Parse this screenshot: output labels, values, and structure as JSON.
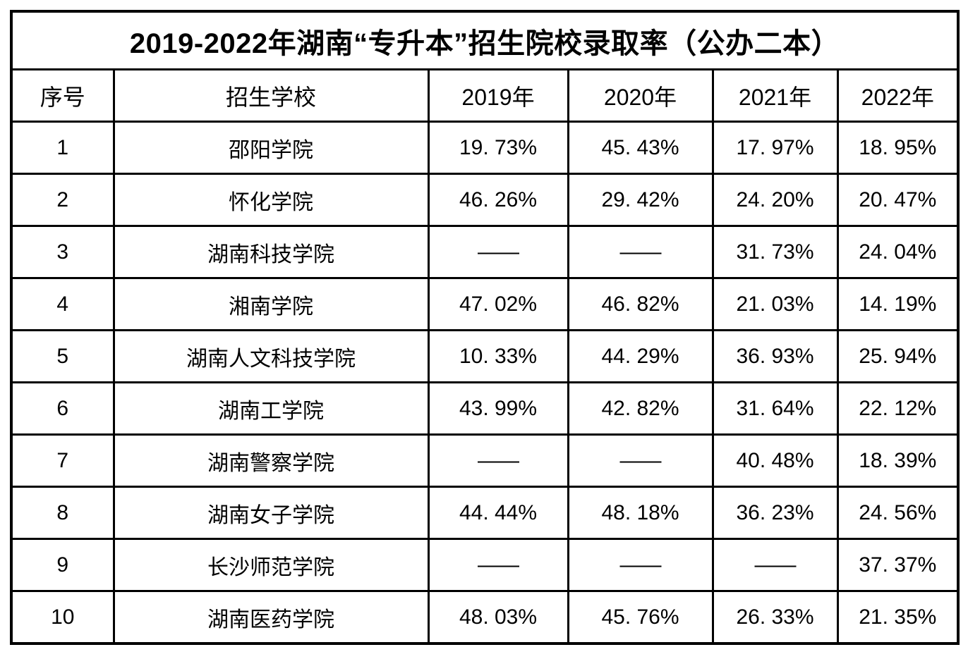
{
  "title": "2019-2022年湖南“专升本”招生院校录取率（公办二本）",
  "table": {
    "columns": [
      "序号",
      "招生学校",
      "2019年",
      "2020年",
      "2021年",
      "2022年"
    ],
    "empty_marker": "——",
    "rows": [
      [
        "1",
        "邵阳学院",
        "19. 73%",
        "45. 43%",
        "17. 97%",
        "18. 95%"
      ],
      [
        "2",
        "怀化学院",
        "46. 26%",
        "29. 42%",
        "24. 20%",
        "20. 47%"
      ],
      [
        "3",
        "湖南科技学院",
        "——",
        "——",
        "31. 73%",
        "24. 04%"
      ],
      [
        "4",
        "湘南学院",
        "47. 02%",
        "46. 82%",
        "21. 03%",
        "14. 19%"
      ],
      [
        "5",
        "湖南人文科技学院",
        "10. 33%",
        "44. 29%",
        "36. 93%",
        "25. 94%"
      ],
      [
        "6",
        "湖南工学院",
        "43. 99%",
        "42. 82%",
        "31. 64%",
        "22. 12%"
      ],
      [
        "7",
        "湖南警察学院",
        "——",
        "——",
        "40. 48%",
        "18. 39%"
      ],
      [
        "8",
        "湖南女子学院",
        "44. 44%",
        "48. 18%",
        "36. 23%",
        "24. 56%"
      ],
      [
        "9",
        "长沙师范学院",
        "——",
        "——",
        "——",
        "37. 37%"
      ],
      [
        "10",
        "湖南医药学院",
        "48. 03%",
        "45. 76%",
        "26. 33%",
        "21. 35%"
      ]
    ]
  },
  "colors": {
    "border": "#000000",
    "text": "#000000",
    "background": "#ffffff"
  },
  "chart_data": {
    "type": "table",
    "title": "2019-2022年湖南“专升本”招生院校录取率（公办二本）",
    "columns": [
      "序号",
      "招生学校",
      "2019年",
      "2020年",
      "2021年",
      "2022年"
    ],
    "categories": [
      "邵阳学院",
      "怀化学院",
      "湖南科技学院",
      "湘南学院",
      "湖南人文科技学院",
      "湖南工学院",
      "湖南警察学院",
      "湖南女子学院",
      "长沙师范学院",
      "湖南医药学院"
    ],
    "series": [
      {
        "name": "2019年",
        "values": [
          19.73,
          46.26,
          null,
          47.02,
          10.33,
          43.99,
          null,
          44.44,
          null,
          48.03
        ]
      },
      {
        "name": "2020年",
        "values": [
          45.43,
          29.42,
          null,
          46.82,
          44.29,
          42.82,
          null,
          48.18,
          null,
          45.76
        ]
      },
      {
        "name": "2021年",
        "values": [
          17.97,
          24.2,
          31.73,
          21.03,
          36.93,
          31.64,
          40.48,
          36.23,
          null,
          26.33
        ]
      },
      {
        "name": "2022年",
        "values": [
          18.95,
          20.47,
          24.04,
          14.19,
          25.94,
          22.12,
          18.39,
          24.56,
          37.37,
          21.35
        ]
      }
    ],
    "unit": "%",
    "note_null_marker": "——"
  }
}
